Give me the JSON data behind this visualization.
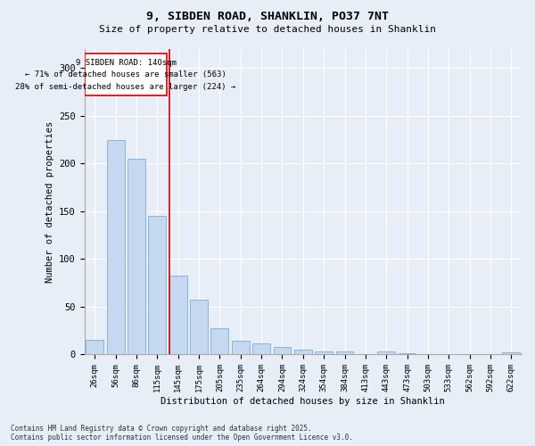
{
  "title1": "9, SIBDEN ROAD, SHANKLIN, PO37 7NT",
  "title2": "Size of property relative to detached houses in Shanklin",
  "xlabel": "Distribution of detached houses by size in Shanklin",
  "ylabel": "Number of detached properties",
  "categories": [
    "26sqm",
    "56sqm",
    "86sqm",
    "115sqm",
    "145sqm",
    "175sqm",
    "205sqm",
    "235sqm",
    "264sqm",
    "294sqm",
    "324sqm",
    "354sqm",
    "384sqm",
    "413sqm",
    "443sqm",
    "473sqm",
    "503sqm",
    "533sqm",
    "562sqm",
    "592sqm",
    "622sqm"
  ],
  "values": [
    15,
    225,
    205,
    145,
    83,
    57,
    28,
    14,
    12,
    8,
    5,
    3,
    3,
    0,
    3,
    1,
    0,
    0,
    0,
    0,
    2
  ],
  "bar_color": "#c5d8f0",
  "bar_edge_color": "#7aadd4",
  "property_line_color": "#cc0000",
  "annotation_title": "9 SIBDEN ROAD: 140sqm",
  "annotation_line1": "← 71% of detached houses are smaller (563)",
  "annotation_line2": "28% of semi-detached houses are larger (224) →",
  "annotation_box_color": "#cc0000",
  "ylim": [
    0,
    320
  ],
  "yticks": [
    0,
    50,
    100,
    150,
    200,
    250,
    300
  ],
  "footer1": "Contains HM Land Registry data © Crown copyright and database right 2025.",
  "footer2": "Contains public sector information licensed under the Open Government Licence v3.0.",
  "bg_color": "#e8eef8",
  "plot_bg_color": "#e8eef8",
  "grid_color": "#ffffff"
}
